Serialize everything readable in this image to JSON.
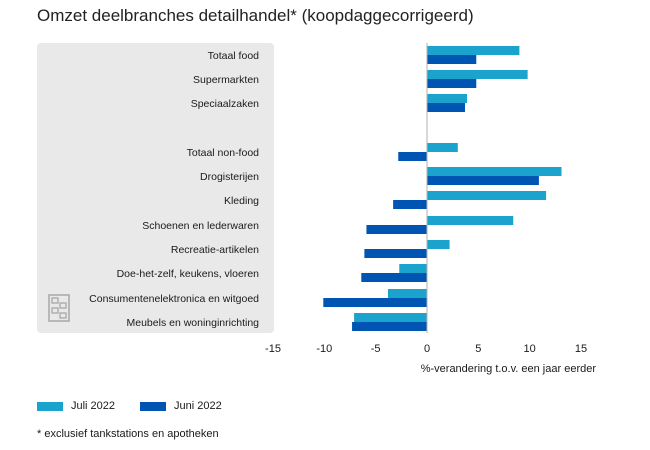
{
  "chart_data": {
    "type": "bar",
    "orientation": "horizontal",
    "title": "Omzet deelbranches detailhandel* (koopdaggecorrigeerd)",
    "xlabel": "%-verandering t.o.v. een jaar eerder",
    "xlim": [
      -15,
      15
    ],
    "xticks": [
      "-15",
      "-10",
      "-5",
      "0",
      "5",
      "10",
      "15"
    ],
    "groups": [
      {
        "label": "Totaal food",
        "values": [
          9.0,
          4.8
        ]
      },
      {
        "label": "Supermarkten",
        "values": [
          9.8,
          4.8
        ]
      },
      {
        "label": "Speciaalzaken",
        "values": [
          3.9,
          3.7
        ]
      },
      {
        "label": "Totaal non-food",
        "values": [
          3.0,
          -2.8
        ]
      },
      {
        "label": "Drogisterijen",
        "values": [
          13.1,
          10.9
        ]
      },
      {
        "label": "Kleding",
        "values": [
          11.6,
          -3.3
        ]
      },
      {
        "label": "Schoenen en lederwaren",
        "values": [
          8.4,
          -5.9
        ]
      },
      {
        "label": "Recreatie-artikelen",
        "values": [
          2.2,
          -6.1
        ]
      },
      {
        "label": "Doe-het-zelf, keukens, vloeren",
        "values": [
          -2.7,
          -6.4
        ]
      },
      {
        "label": "Consumentenelektronica en witgoed",
        "values": [
          -3.8,
          -10.1
        ]
      },
      {
        "label": "Meubels en woninginrichting",
        "values": [
          -7.1,
          -7.3
        ]
      }
    ],
    "series": [
      {
        "name": "Juli 2022",
        "color": "#1aa3cc"
      },
      {
        "name": "Juni 2022",
        "color": "#0055b3"
      }
    ],
    "legend_position": "bottom-left",
    "grid": false
  },
  "footnote": "* exclusief tankstations en apotheken",
  "logo_icon": "cbs-logo-icon"
}
